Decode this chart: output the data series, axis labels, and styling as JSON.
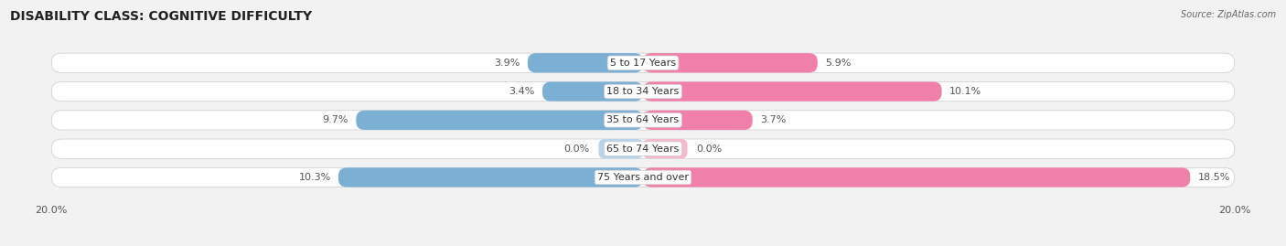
{
  "title": "DISABILITY CLASS: COGNITIVE DIFFICULTY",
  "source": "Source: ZipAtlas.com",
  "categories": [
    "5 to 17 Years",
    "18 to 34 Years",
    "35 to 64 Years",
    "65 to 74 Years",
    "75 Years and over"
  ],
  "male_values": [
    3.9,
    3.4,
    9.7,
    0.0,
    10.3
  ],
  "female_values": [
    5.9,
    10.1,
    3.7,
    0.0,
    18.5
  ],
  "max_val": 20.0,
  "male_color": "#7bafd4",
  "female_color": "#f07faa",
  "male_color_zero": "#b8d4ea",
  "female_color_zero": "#f5b8ce",
  "bg_color": "#f2f2f2",
  "row_bg_color": "#e8e8e8",
  "title_fontsize": 10,
  "label_fontsize": 8,
  "value_fontsize": 8,
  "axis_fontsize": 8
}
